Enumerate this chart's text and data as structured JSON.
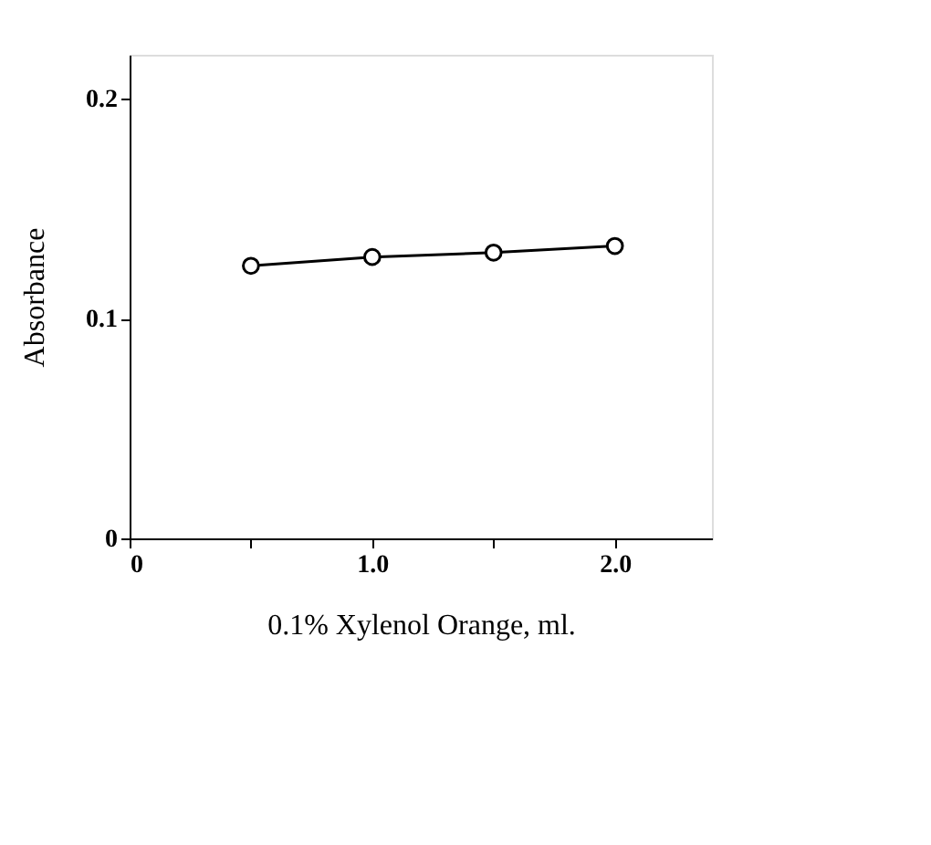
{
  "chart_data": {
    "type": "line",
    "xlabel": "0.1% Xylenol Orange, ml.",
    "ylabel": "Absorbance",
    "x": [
      0.5,
      1.0,
      1.5,
      2.0
    ],
    "series": [
      {
        "color": "#000000",
        "values": [
          0.124,
          0.128,
          0.13,
          0.133
        ]
      }
    ],
    "xlim": [
      0,
      2.4
    ],
    "ylim": [
      0,
      0.22
    ],
    "xticks": [
      {
        "value": 0,
        "label": "0"
      },
      {
        "value": 0.5,
        "label": null
      },
      {
        "value": 1.0,
        "label": "1.0"
      },
      {
        "value": 1.5,
        "label": null
      },
      {
        "value": 2.0,
        "label": "2.0"
      }
    ],
    "yticks": [
      {
        "value": 0,
        "label": "0"
      },
      {
        "value": 0.1,
        "label": "0.1"
      },
      {
        "value": 0.2,
        "label": "0.2"
      }
    ],
    "marker": "circle",
    "line_style": "solid",
    "grid": false,
    "legend": false
  }
}
